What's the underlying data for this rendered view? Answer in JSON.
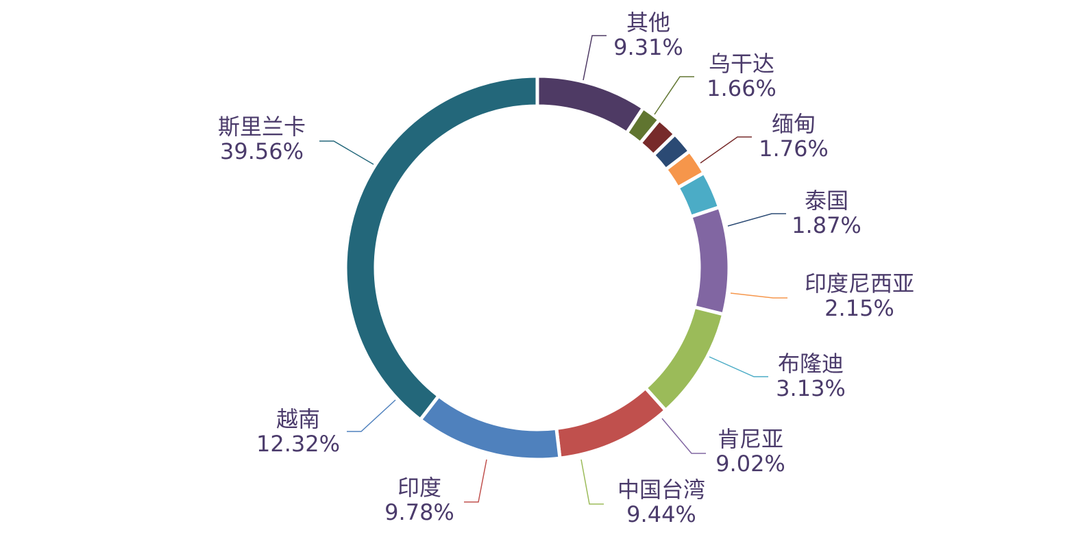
{
  "chart_data": {
    "type": "pie",
    "variant": "donut",
    "legend": "none",
    "series": [
      {
        "slices": [
          {
            "label": "其他",
            "percent_text": "9.31%",
            "value": 9.31,
            "color": "#4e3a64"
          },
          {
            "label": "乌干达",
            "percent_text": "1.66%",
            "value": 1.66,
            "color": "#607530"
          },
          {
            "label": "缅甸",
            "percent_text": "1.76%",
            "value": 1.76,
            "color": "#772a2a"
          },
          {
            "label": "泰国",
            "percent_text": "1.87%",
            "value": 1.87,
            "color": "#2b4a74"
          },
          {
            "label": "印度尼西亚",
            "percent_text": "2.15%",
            "value": 2.15,
            "color": "#f6964b"
          },
          {
            "label": "布隆迪",
            "percent_text": "3.13%",
            "value": 3.13,
            "color": "#4bacc6"
          },
          {
            "label": "肯尼亚",
            "percent_text": "9.02%",
            "value": 9.02,
            "color": "#8166a2"
          },
          {
            "label": "中国台湾",
            "percent_text": "9.44%",
            "value": 9.44,
            "color": "#9bbb59"
          },
          {
            "label": "印度",
            "percent_text": "9.78%",
            "value": 9.78,
            "color": "#c0504d"
          },
          {
            "label": "越南",
            "percent_text": "12.32%",
            "value": 12.32,
            "color": "#4f81bd"
          },
          {
            "label": "斯里兰卡",
            "percent_text": "39.56%",
            "value": 39.56,
            "color": "#23677a"
          }
        ]
      }
    ]
  }
}
